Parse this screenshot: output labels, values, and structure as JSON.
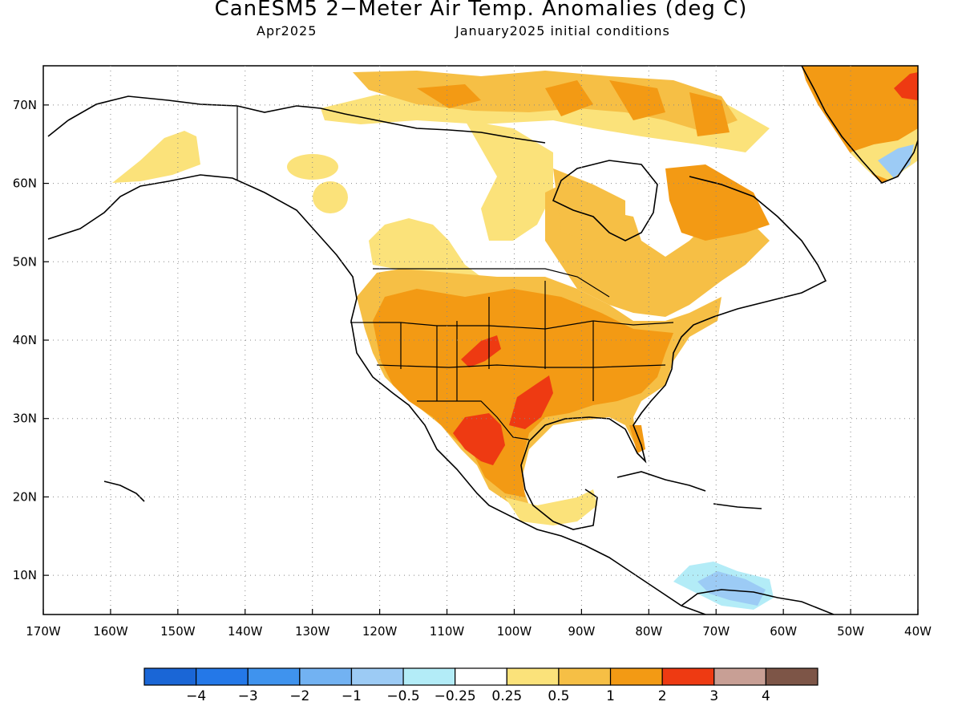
{
  "title": "CanESM5 2−Meter Air Temp. Anomalies (deg C)",
  "subtitle_left": "Apr2025",
  "subtitle_right": "January2025 initial conditions",
  "map": {
    "lon_range": [
      -170,
      -40
    ],
    "lat_range": [
      5,
      75
    ],
    "x_ticks": [
      "170W",
      "160W",
      "150W",
      "140W",
      "130W",
      "120W",
      "110W",
      "100W",
      "90W",
      "80W",
      "70W",
      "60W",
      "50W",
      "40W"
    ],
    "y_ticks": [
      "10N",
      "20N",
      "30N",
      "40N",
      "50N",
      "60N",
      "70N"
    ],
    "gridlines": true,
    "grid_style": "dotted"
  },
  "colorbar": {
    "colors": [
      "#1a66d6",
      "#2478e8",
      "#3f93ee",
      "#72b2f2",
      "#9ccbf5",
      "#b3ecf7",
      "#ffffff",
      "#fbe27a",
      "#f6bf45",
      "#f39a14",
      "#ee3a12",
      "#c89f95",
      "#7d5547"
    ],
    "labels": [
      "−4",
      "−3",
      "−2",
      "−1",
      "−0.5",
      "−0.25",
      "0.25",
      "0.5",
      "1",
      "2",
      "3",
      "4"
    ]
  },
  "anomaly_regions": [
    {
      "category": "1 to 2",
      "color": "#f39a14",
      "desc": "Central and southern United States"
    },
    {
      "category": "2 to 3",
      "color": "#ee3a12",
      "desc": "Colorado / Texas / northern Mexico"
    },
    {
      "category": "1 to 2",
      "color": "#f39a14",
      "desc": "Greenland and Hudson Bay region"
    },
    {
      "category": "-1 to -0.5",
      "color": "#9ccbf5",
      "desc": "Southern Caribbean"
    }
  ]
}
